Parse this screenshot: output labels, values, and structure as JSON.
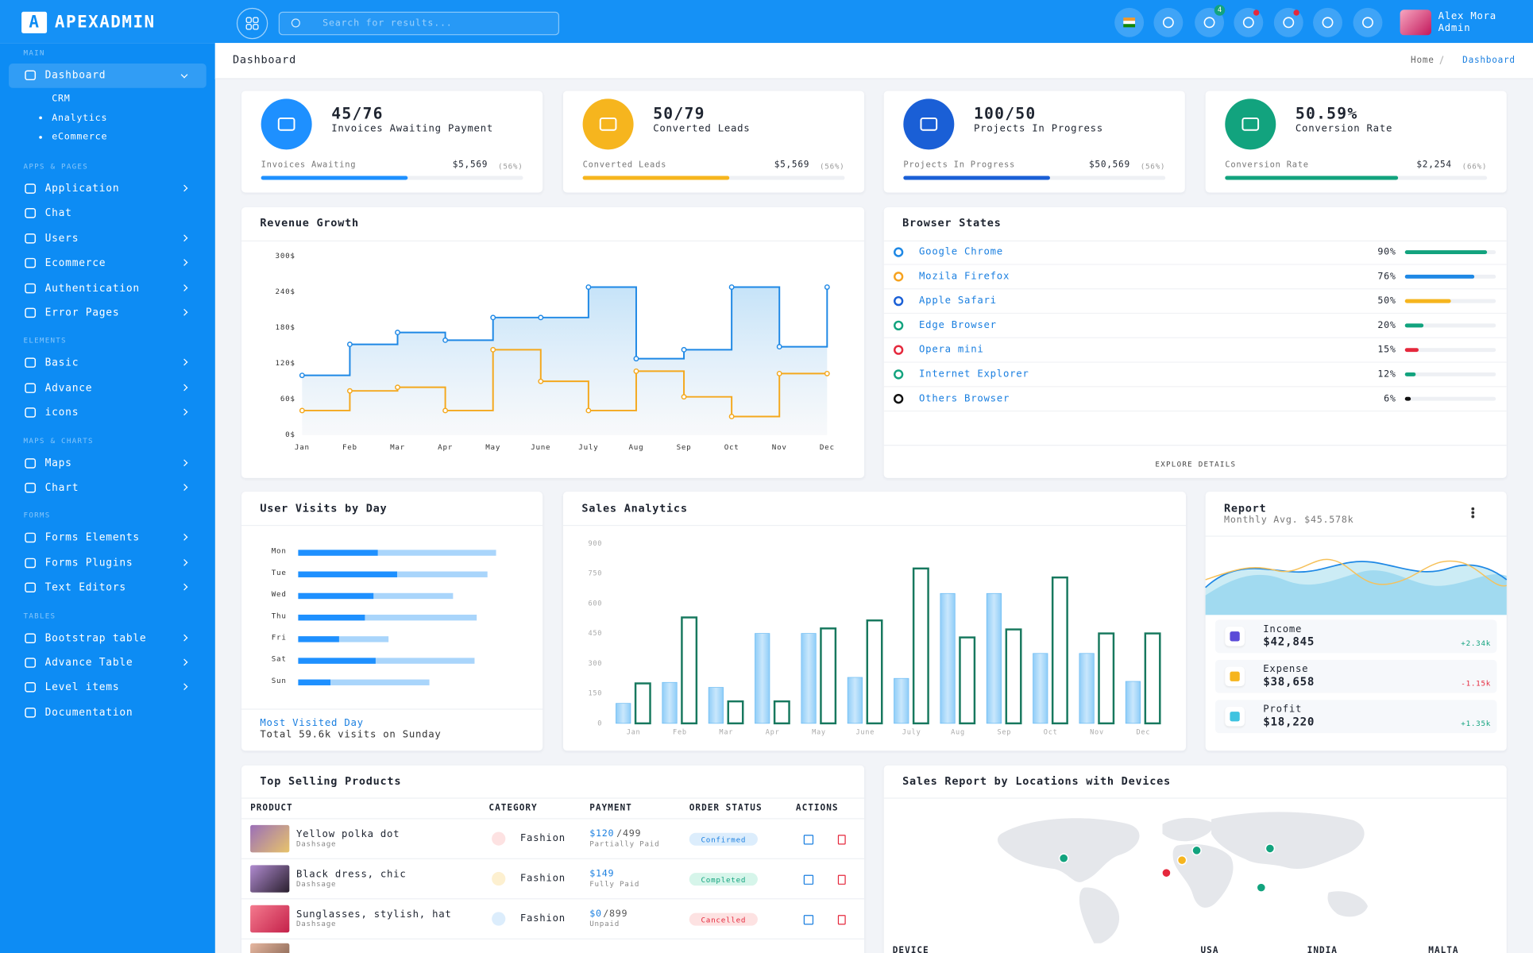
{
  "brand": {
    "letter": "A",
    "name": "APEXADMIN"
  },
  "header": {
    "search_placeholder": "Search for results...",
    "cart_badge": "4",
    "user_name": "Alex Mora",
    "user_role": "Admin"
  },
  "page": {
    "title": "Dashboard",
    "breadcrumb": [
      "Home",
      "Dashboard"
    ]
  },
  "sidebar": {
    "sections": [
      {
        "heading": "MAIN",
        "items": [
          {
            "label": "Dashboard",
            "submenu": true,
            "active": true,
            "expanded": true,
            "subitems": [
              "CRM",
              "Analytics",
              "eCommerce"
            ]
          }
        ]
      },
      {
        "heading": "APPS & PAGES",
        "items": [
          {
            "label": "Application",
            "submenu": true
          },
          {
            "label": "Chat",
            "submenu": false
          },
          {
            "label": "Users",
            "submenu": true
          },
          {
            "label": "Ecommerce",
            "submenu": true
          },
          {
            "label": "Authentication",
            "submenu": true
          },
          {
            "label": "Error Pages",
            "submenu": true
          }
        ]
      },
      {
        "heading": "ELEMENTS",
        "items": [
          {
            "label": "Basic",
            "submenu": true
          },
          {
            "label": "Advance",
            "submenu": true
          },
          {
            "label": "icons",
            "submenu": true
          }
        ]
      },
      {
        "heading": "MAPS & CHARTS",
        "items": [
          {
            "label": "Maps",
            "submenu": true
          },
          {
            "label": "Chart",
            "submenu": true
          }
        ]
      },
      {
        "heading": "FORMS",
        "items": [
          {
            "label": "Forms Elements",
            "submenu": true
          },
          {
            "label": "Forms Plugins",
            "submenu": true
          },
          {
            "label": "Text Editors",
            "submenu": true
          }
        ]
      },
      {
        "heading": "TABLES",
        "items": [
          {
            "label": "Bootstrap table",
            "submenu": true
          },
          {
            "label": "Advance Table",
            "submenu": true
          },
          {
            "label": "Level items",
            "submenu": true
          },
          {
            "label": "Documentation",
            "submenu": false
          }
        ]
      }
    ]
  },
  "stats": [
    {
      "value": "45/76",
      "label": "Invoices Awaiting Payment",
      "sub_label": "Invoices Awaiting",
      "amount": "$5,569",
      "progress": 56,
      "progress_label": "(56%)",
      "color": "#1e90ff"
    },
    {
      "value": "50/79",
      "label": "Converted Leads",
      "sub_label": "Converted Leads",
      "amount": "$5,569",
      "progress": 56,
      "progress_label": "(56%)",
      "color": "#f6b51e"
    },
    {
      "value": "100/50",
      "label": "Projects In Progress",
      "sub_label": "Projects In Progress",
      "amount": "$50,569",
      "progress": 56,
      "progress_label": "(56%)",
      "color": "#1a5fd6"
    },
    {
      "value": "50.59%",
      "label": "Conversion Rate",
      "sub_label": "Conversion Rate",
      "amount": "$2,254",
      "progress": 66,
      "progress_label": "(66%)",
      "color": "#12a37e"
    }
  ],
  "chart_data": [
    {
      "type": "line",
      "step": true,
      "title": "Revenue Growth",
      "grid": false,
      "categories": [
        "Jan",
        "Feb",
        "Mar",
        "Apr",
        "May",
        "June",
        "July",
        "Aug",
        "Sep",
        "Oct",
        "Nov",
        "Dec"
      ],
      "ylim": [
        0,
        300
      ],
      "yticks": [
        {
          "value": 0,
          "label": "0$"
        },
        {
          "value": 60,
          "label": "60$"
        },
        {
          "value": 120,
          "label": "120$"
        },
        {
          "value": 180,
          "label": "180$"
        },
        {
          "value": 240,
          "label": "240$"
        },
        {
          "value": 300,
          "label": "300$"
        }
      ],
      "series": [
        {
          "color": "#1e88e5",
          "values": [
            100,
            152,
            172,
            159,
            197,
            197,
            248,
            128,
            143,
            248,
            148,
            248
          ]
        },
        {
          "color": "#f4a81d",
          "values": [
            41,
            74,
            80,
            41,
            143,
            90,
            41,
            107,
            64,
            31,
            103,
            103
          ]
        }
      ]
    },
    {
      "type": "bar",
      "orientation": "horizontal",
      "title": "User Visits by Day",
      "categories": [
        "Mon",
        "Tue",
        "Wed",
        "Thu",
        "Fri",
        "Sat",
        "Sun"
      ],
      "xlim": [
        0,
        100
      ],
      "series": [
        {
          "color": "#a9d5fb",
          "values": [
            92,
            88,
            72,
            83,
            42,
            82,
            61
          ]
        },
        {
          "color": "#1e90ff",
          "values": [
            37,
            46,
            35,
            31,
            19,
            36,
            15
          ]
        }
      ]
    },
    {
      "type": "bar",
      "title": "Sales Analytics",
      "grid": false,
      "categories": [
        "Jan",
        "Feb",
        "Mar",
        "Apr",
        "May",
        "June",
        "July",
        "Aug",
        "Sep",
        "Oct",
        "Nov",
        "Dec"
      ],
      "ylim": [
        0,
        900
      ],
      "yticks": [
        0,
        150,
        300,
        450,
        600,
        750,
        900
      ],
      "series": [
        {
          "color": "#8fcdf8",
          "outline": false,
          "values": [
            100,
            205,
            180,
            450,
            450,
            230,
            225,
            650,
            650,
            350,
            350,
            210
          ]
        },
        {
          "color": "#17785e",
          "outline": true,
          "values": [
            200,
            530,
            110,
            110,
            475,
            515,
            775,
            430,
            470,
            730,
            450,
            450
          ]
        }
      ]
    }
  ],
  "visits_footer": {
    "title": "Most Visited Day",
    "text": "Total 59.6k visits on Sunday"
  },
  "browsers": {
    "title": "Browser States",
    "button": "EXPLORE DETAILS",
    "rows": [
      {
        "name": "Google Chrome",
        "value": 90,
        "value_label": "90%",
        "color": "#12a37e",
        "icon_color": "#1e88e5"
      },
      {
        "name": "Mozila Firefox",
        "value": 76,
        "value_label": "76%",
        "color": "#1e88e5",
        "icon_color": "#f6a21e"
      },
      {
        "name": "Apple Safari",
        "value": 50,
        "value_label": "50%",
        "color": "#f6b51e",
        "icon_color": "#1a5fd6"
      },
      {
        "name": "Edge Browser",
        "value": 20,
        "value_label": "20%",
        "color": "#12a37e",
        "icon_color": "#12a37e"
      },
      {
        "name": "Opera mini",
        "value": 15,
        "value_label": "15%",
        "color": "#e5283c",
        "icon_color": "#e5283c"
      },
      {
        "name": "Internet Explorer",
        "value": 12,
        "value_label": "12%",
        "color": "#12a37e",
        "icon_color": "#12a37e"
      },
      {
        "name": "Others Browser",
        "value": 6,
        "value_label": "6%",
        "color": "#111111",
        "icon_color": "#111111"
      }
    ]
  },
  "report": {
    "title": "Report",
    "subtitle": "Monthly Avg. $45.578k",
    "items": [
      {
        "label": "Income",
        "amount": "$42,845",
        "change": "+2.34k",
        "color": "#12a37e"
      },
      {
        "label": "Expense",
        "amount": "$38,658",
        "change": "-1.15k",
        "color": "#e5283c"
      },
      {
        "label": "Profit",
        "amount": "$18,220",
        "change": "+1.35k",
        "color": "#12a37e"
      }
    ]
  },
  "products": {
    "title": "Top Selling Products",
    "columns": [
      "PRODUCT",
      "CATEGORY",
      "PAYMENT",
      "ORDER STATUS",
      "ACTIONS"
    ],
    "rows": [
      {
        "name": "Yellow polka dot",
        "brand": "Dashsage",
        "category": "Fashion",
        "paid": "$120",
        "total": "/499",
        "payment_status": "Partially Paid",
        "order_status": "Confirmed"
      },
      {
        "name": "Black dress, chic",
        "brand": "Dashsage",
        "category": "Fashion",
        "paid": "$149",
        "total": "",
        "payment_status": "Fully Paid",
        "order_status": "Completed"
      },
      {
        "name": "Sunglasses, stylish, hat",
        "brand": "Dashsage",
        "category": "Fashion",
        "paid": "$0",
        "total": "/899",
        "payment_status": "Unpaid",
        "order_status": "Cancelled"
      }
    ]
  },
  "locations": {
    "title": "Sales Report by Locations with Devices",
    "columns": [
      "DEVICE",
      "USA",
      "INDIA",
      "MALTA"
    ]
  }
}
